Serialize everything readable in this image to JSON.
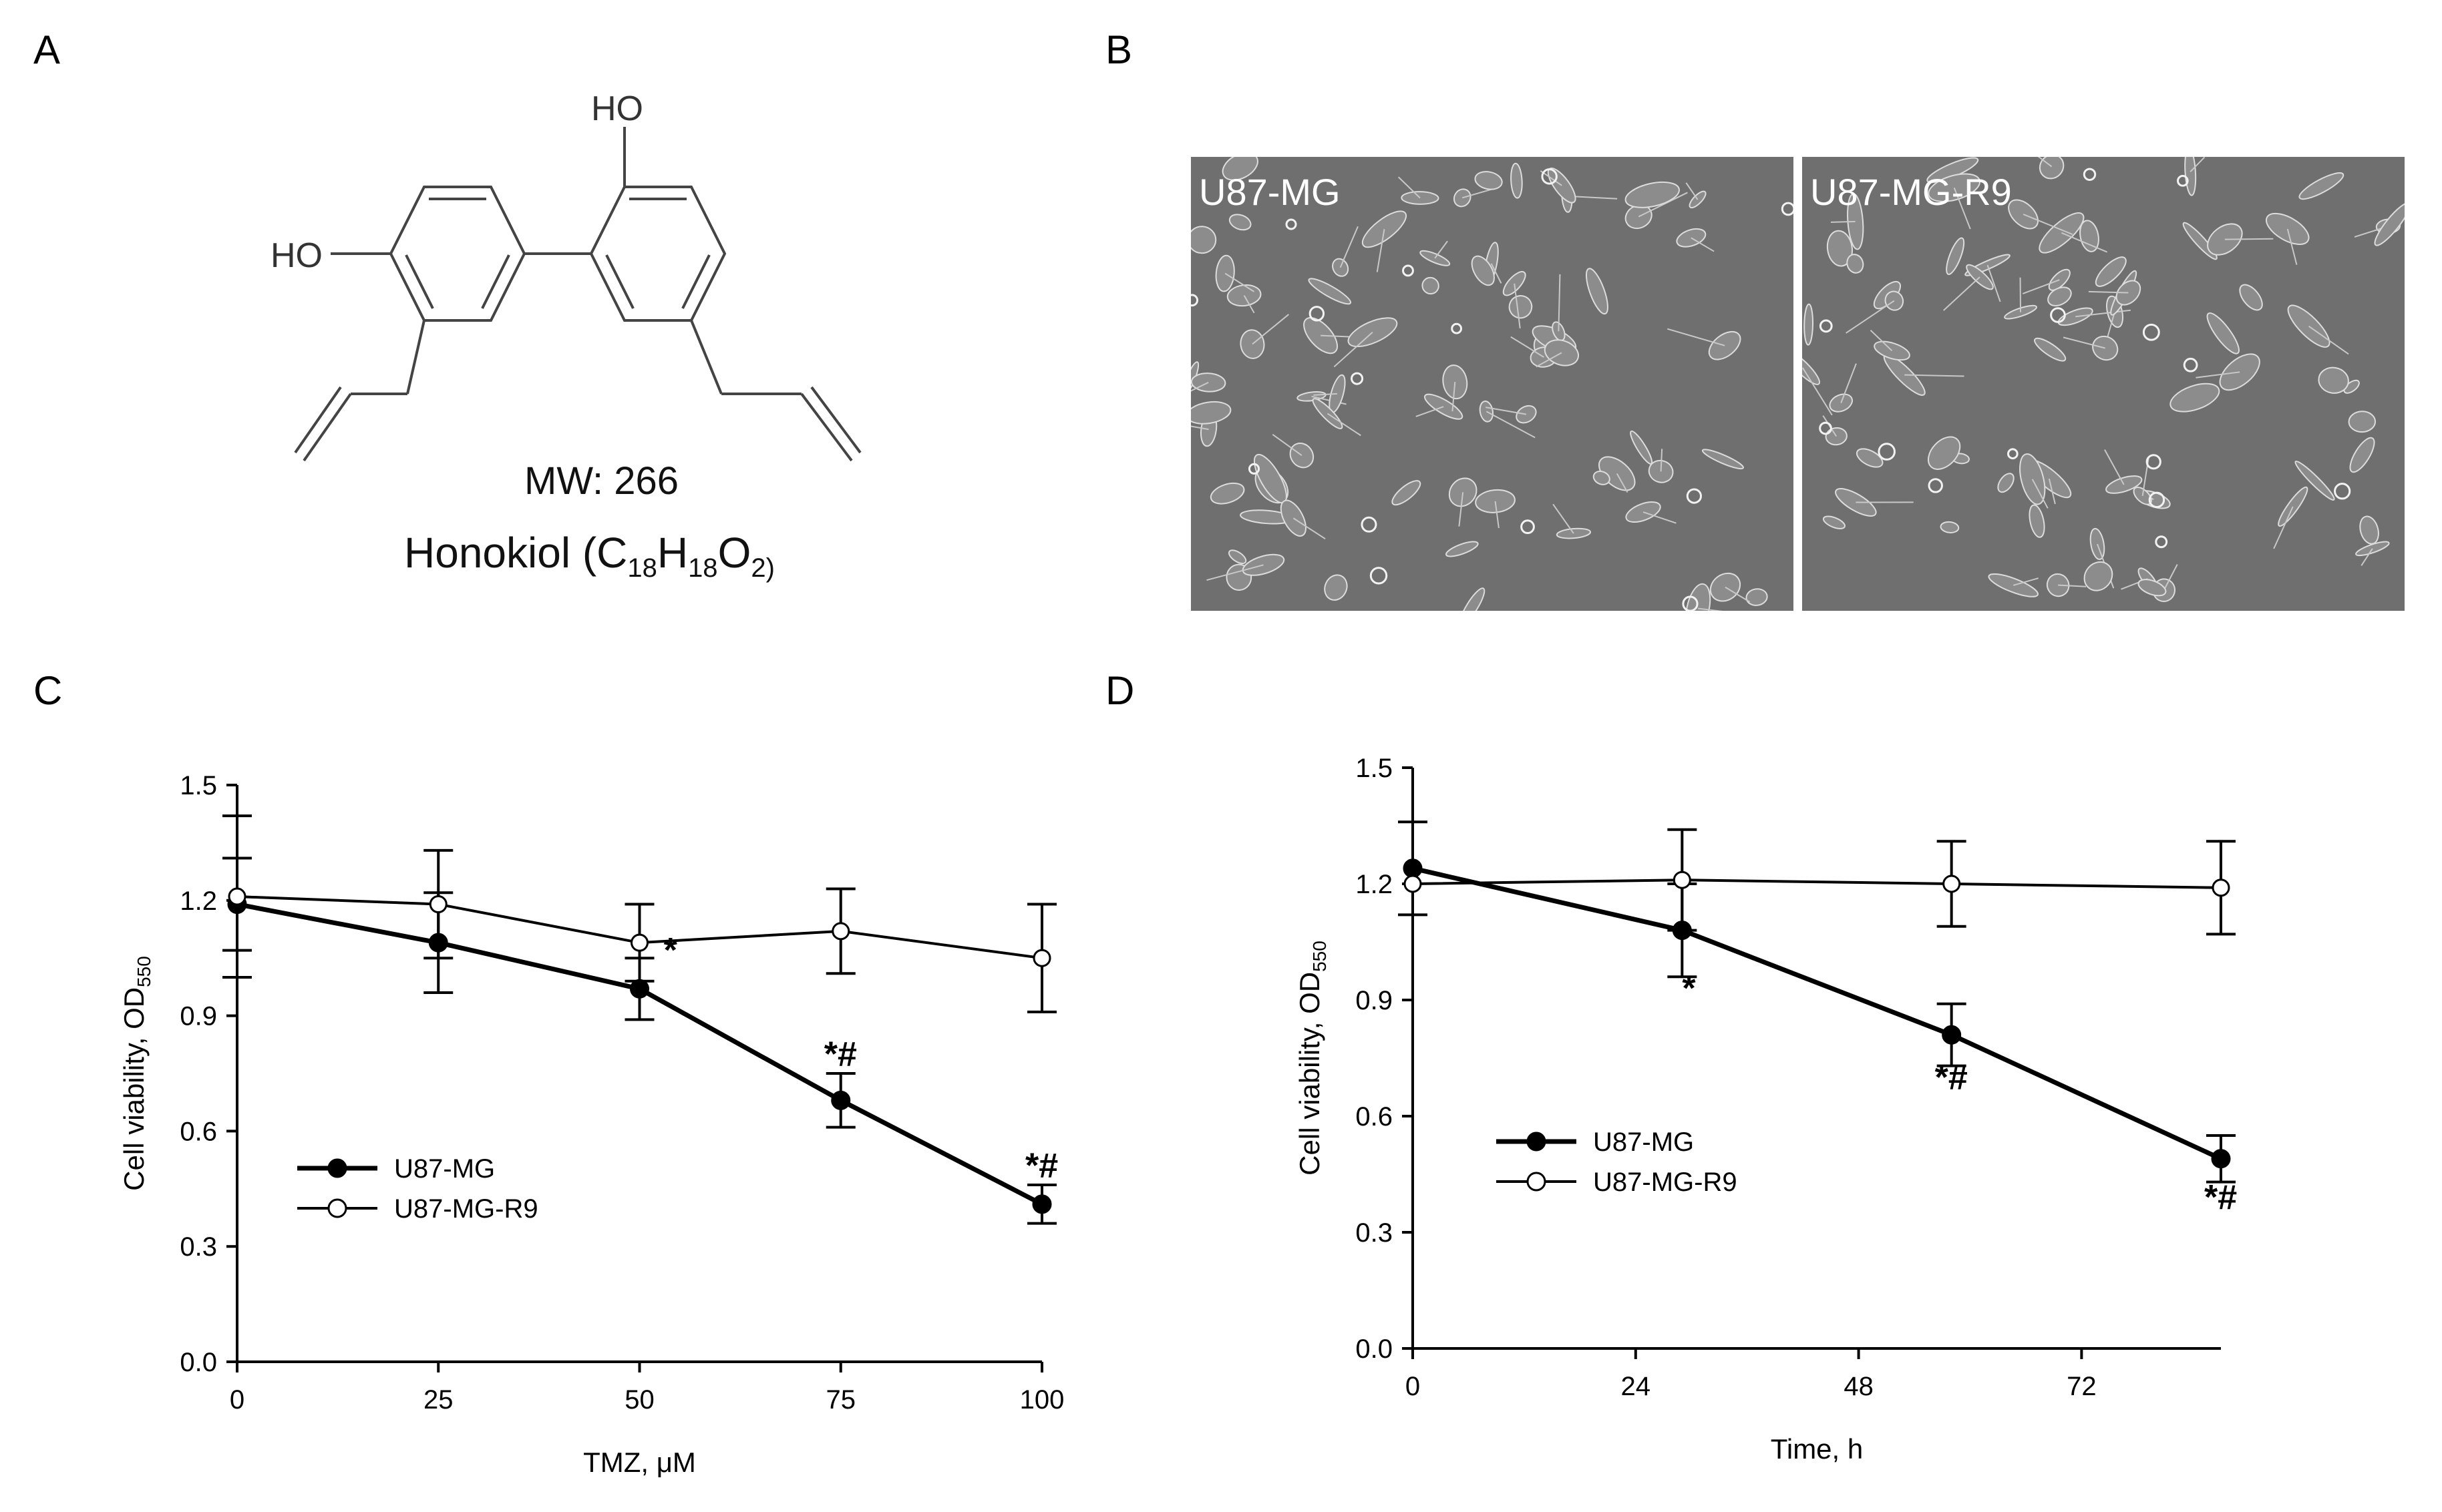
{
  "panels": {
    "a": "A",
    "b": "B",
    "c": "C",
    "d": "D"
  },
  "molecule": {
    "oh_left": "HO",
    "oh_top": "HO",
    "mw": "MW: 266",
    "name_prefix": "Honokiol (C",
    "sub_c": "18",
    "h": "H",
    "sub_h": "18",
    "o": "O",
    "sub_o": "2)"
  },
  "micrographs": {
    "left_label": "U87-MG",
    "right_label": "U87-MG-R9"
  },
  "chart_data": [
    {
      "type": "line",
      "xlabel": "TMZ, μM",
      "ylabel_main": "Cell viability, OD",
      "ylabel_sub": "550",
      "x": [
        0,
        25,
        50,
        75,
        100
      ],
      "xticks": [
        0,
        25,
        50,
        75,
        100
      ],
      "xlim": [
        0,
        100
      ],
      "yticks": [
        "0.0",
        "0.3",
        "0.6",
        "0.9",
        "1.2",
        "1.5"
      ],
      "ylim": [
        0,
        1.5
      ],
      "grid": false,
      "legend_placement": "left-middle",
      "series": [
        {
          "name": "U87-MG",
          "marker": "filled",
          "values": [
            1.19,
            1.09,
            0.97,
            0.68,
            0.41
          ],
          "errors": [
            0.12,
            0.13,
            0.08,
            0.07,
            0.05
          ]
        },
        {
          "name": "U87-MG-R9",
          "marker": "open",
          "values": [
            1.21,
            1.19,
            1.09,
            1.12,
            1.05
          ],
          "errors": [
            0.21,
            0.14,
            0.1,
            0.11,
            0.14
          ]
        }
      ],
      "annotations": [
        {
          "text": "*",
          "x": 53,
          "y": 1.04
        },
        {
          "text": "*#",
          "x": 75,
          "y": 0.77
        },
        {
          "text": "*#",
          "x": 100,
          "y": 0.48
        }
      ]
    },
    {
      "type": "line",
      "xlabel": "Time, h",
      "ylabel_main": "Cell viability, OD",
      "ylabel_sub": "550",
      "x": [
        0,
        29,
        58,
        87
      ],
      "xticks": [
        0,
        24,
        48,
        72
      ],
      "xlim": [
        0,
        87
      ],
      "yticks": [
        "0.0",
        "0.3",
        "0.6",
        "0.9",
        "1.2",
        "1.5"
      ],
      "ylim": [
        0,
        1.5
      ],
      "grid": false,
      "legend_placement": "left-middle",
      "series": [
        {
          "name": "U87-MG",
          "marker": "filled",
          "values": [
            1.24,
            1.08,
            0.81,
            0.49
          ],
          "errors": [
            0.12,
            0.12,
            0.08,
            0.06
          ]
        },
        {
          "name": "U87-MG-R9",
          "marker": "open",
          "values": [
            1.2,
            1.21,
            1.2,
            1.19
          ],
          "errors": [
            0.0,
            0.13,
            0.11,
            0.12
          ]
        }
      ],
      "annotations": [
        {
          "text": "*",
          "x": 29,
          "y": 0.9
        },
        {
          "text": "*#",
          "x": 58,
          "y": 0.67
        },
        {
          "text": "*#",
          "x": 87,
          "y": 0.36
        }
      ]
    }
  ]
}
